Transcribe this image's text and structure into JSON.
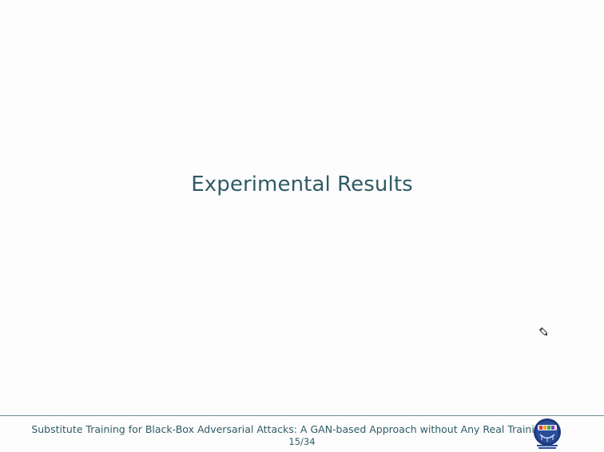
{
  "slide": {
    "section_title": "Experimental Results"
  },
  "footer": {
    "title": "Substitute Training for Black-Box Adversarial Attacks: A GAN-based Approach without Any Real Training",
    "page_number": "15/34"
  },
  "icons": {
    "cursor": "pen-cursor-icon",
    "logo": "program-logo"
  },
  "colors": {
    "text": "#2f5b66",
    "background": "#fdfdfd",
    "rule": "#6f8c93"
  }
}
